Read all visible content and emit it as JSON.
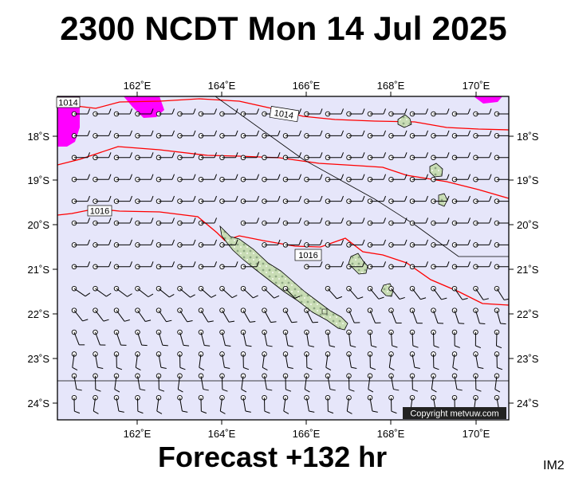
{
  "title": "2300 NCDT Mon 14 Jul 2025",
  "forecast_label": "Forecast +132 hr",
  "image_code": "IM2",
  "copyright": "Copyright metvuw.com",
  "map": {
    "lon_labels": [
      "162˚E",
      "164˚E",
      "166˚E",
      "168˚E",
      "170˚E"
    ],
    "lat_labels": [
      "18˚S",
      "19˚S",
      "20˚S",
      "21˚S",
      "22˚S",
      "23˚S",
      "24˚S"
    ],
    "isobar_labels": [
      "1014",
      "1014",
      "1016",
      "1016"
    ],
    "colors": {
      "ocean": "#e6e6fa",
      "isobar": "#ff0000",
      "precip": "#ff00ff",
      "land": "#c8dcb4",
      "land_outline": "#000000",
      "wind_barb": "#000000"
    }
  }
}
